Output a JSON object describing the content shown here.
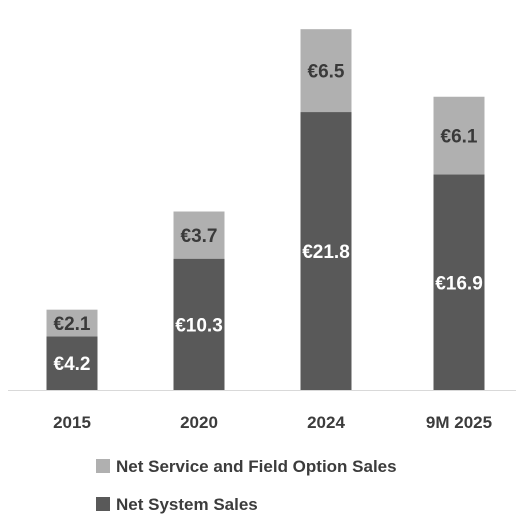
{
  "chart_data": {
    "type": "bar",
    "stacked": true,
    "categories": [
      "2015",
      "2020",
      "2024",
      "9M 2025"
    ],
    "series": [
      {
        "name": "Net System Sales",
        "values": [
          4.2,
          10.3,
          21.8,
          16.9
        ],
        "labels": [
          "€4.2",
          "€10.3",
          "€21.8",
          "€16.9"
        ],
        "color": "#595959",
        "label_color": "#ffffff"
      },
      {
        "name": "Net Service and Field Option Sales",
        "values": [
          2.1,
          3.7,
          6.5,
          6.1
        ],
        "labels": [
          "€2.1",
          "€3.7",
          "€6.5",
          "€6.1"
        ],
        "color": "#b0b0b0",
        "label_color": "#3a3a3a"
      }
    ],
    "legend_position": "bottom",
    "grid": false,
    "axis_color": "#d9d9d9"
  }
}
